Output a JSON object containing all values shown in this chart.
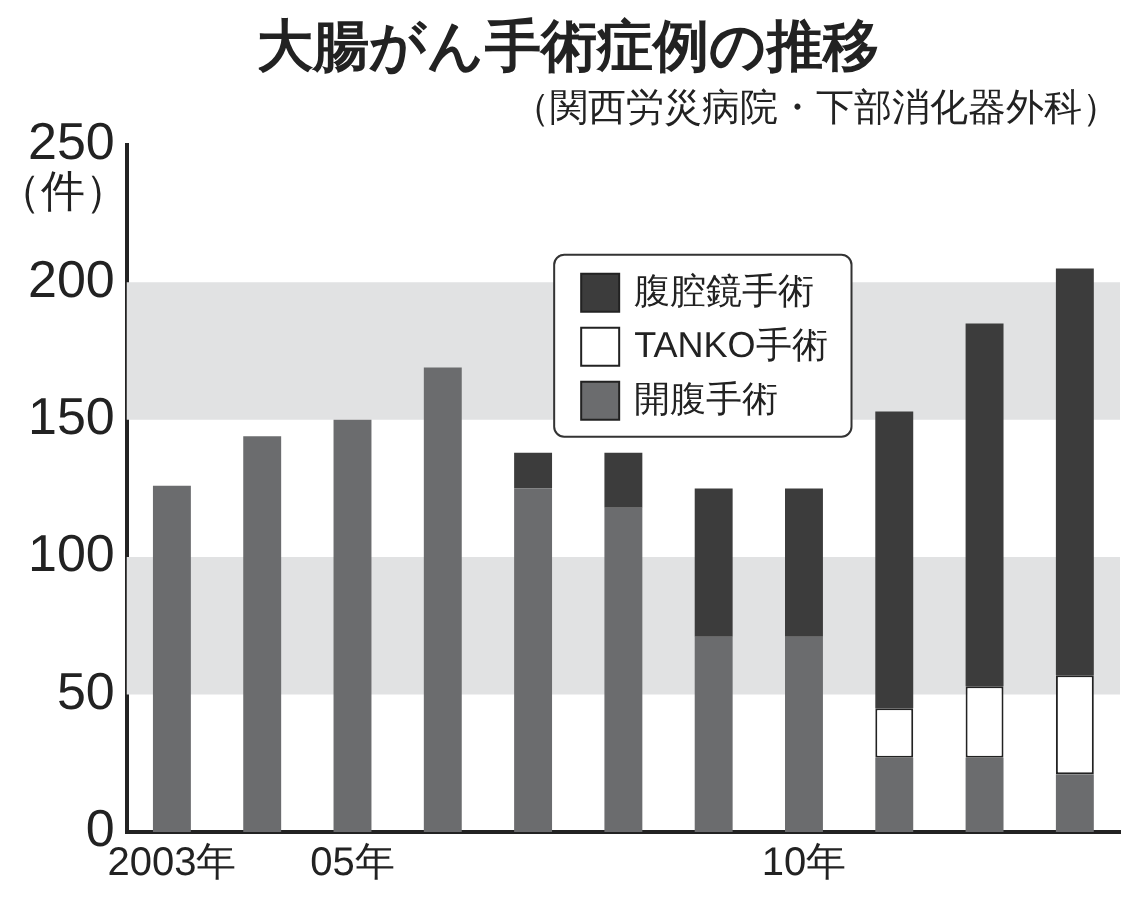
{
  "chart_data": {
    "type": "bar",
    "title": "大腸がん手術症例の推移",
    "subtitle": "（関西労災病院・下部消化器外科）",
    "ylabel": "（件）",
    "categories": [
      "2003年",
      null,
      "05年",
      null,
      null,
      null,
      null,
      "10年",
      null,
      null,
      null
    ],
    "stacked": true,
    "series": [
      {
        "name": "開腹手術",
        "color": "#6b6c6e",
        "values": [
          126,
          144,
          150,
          169,
          125,
          118,
          71,
          71,
          27,
          27,
          21
        ]
      },
      {
        "name": "TANKO手術",
        "color": "#ffffff",
        "values": [
          null,
          null,
          null,
          null,
          null,
          null,
          null,
          null,
          18,
          26,
          36
        ]
      },
      {
        "name": "腹腔鏡手術",
        "color": "#3c3c3c",
        "values": [
          null,
          null,
          null,
          null,
          13,
          20,
          54,
          54,
          108,
          132,
          148
        ]
      }
    ],
    "ylim": [
      0,
      250
    ],
    "yticks": [
      0,
      50,
      100,
      150,
      200,
      250
    ],
    "bands": [
      {
        "axis": "y",
        "from": 50,
        "to": 100,
        "color": "#e1e2e3"
      },
      {
        "axis": "y",
        "from": 150,
        "to": 200,
        "color": "#e1e2e3"
      }
    ],
    "grid": false,
    "legend": "top"
  }
}
